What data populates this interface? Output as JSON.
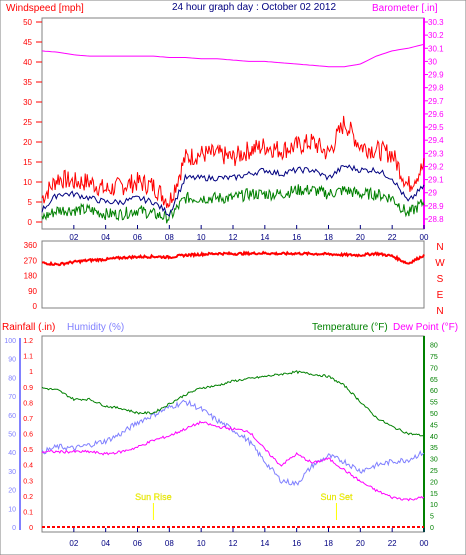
{
  "title": "24 hour graph day : October 02 2012",
  "colors": {
    "wind": "#ff0000",
    "gust": "#ff0000",
    "avg": "#000080",
    "green": "#008000",
    "baro": "#ff00ff",
    "dir": "#ff0000",
    "rain": "#ff0000",
    "humidity": "#8080ff",
    "temp": "#008000",
    "dew": "#ff00ff",
    "sun": "#ffff00",
    "blue_axis": "#8080ff"
  },
  "x_ticks": [
    "02",
    "04",
    "06",
    "08",
    "10",
    "12",
    "14",
    "16",
    "18",
    "20",
    "22",
    "00"
  ],
  "chart_data": [
    {
      "type": "line",
      "title": "24 hour graph day : October 02 2012",
      "left_label": "Windspeed [mph]",
      "right_label": "Barometer [.in]",
      "y_left_ticks": [
        "0",
        "5",
        "10",
        "15",
        "20",
        "25",
        "30",
        "35",
        "40",
        "45",
        "50"
      ],
      "y_right_ticks": [
        "28.8",
        "28.9",
        "29",
        "29.1",
        "29.2",
        "29.3",
        "29.4",
        "29.5",
        "29.6",
        "29.7",
        "29.8",
        "29.9",
        "30",
        "30.1",
        "30.2",
        "30.3"
      ],
      "x_hours": [
        0,
        1,
        2,
        3,
        4,
        5,
        6,
        7,
        8,
        9,
        10,
        11,
        12,
        13,
        14,
        15,
        16,
        17,
        18,
        19,
        20,
        21,
        22,
        23,
        24
      ],
      "series": [
        {
          "key": "gust",
          "values": [
            6,
            11,
            10,
            10,
            8,
            9,
            10,
            9,
            5,
            16,
            17,
            17,
            16,
            18,
            19,
            18,
            19,
            20,
            17,
            25,
            19,
            18,
            17,
            9,
            14
          ]
        },
        {
          "key": "avg",
          "values": [
            3,
            7,
            7,
            6,
            5,
            5,
            6,
            5,
            2,
            11,
            11,
            11,
            11,
            12,
            13,
            12,
            13,
            13,
            11,
            14,
            13,
            13,
            11,
            5,
            9
          ]
        },
        {
          "key": "low",
          "values": [
            1,
            3,
            3,
            3,
            2,
            2,
            3,
            2,
            1,
            6,
            6,
            6,
            6,
            7,
            7,
            7,
            8,
            8,
            7,
            8,
            7,
            7,
            6,
            2,
            5
          ]
        },
        {
          "key": "baro",
          "axis": "right",
          "values": [
            30.08,
            30.07,
            30.05,
            30.04,
            30.04,
            30.04,
            30.04,
            30.04,
            30.03,
            30.03,
            30.02,
            30.02,
            30.01,
            30.0,
            30.0,
            29.99,
            29.98,
            29.97,
            29.96,
            29.96,
            29.98,
            30.04,
            30.08,
            30.1,
            30.13
          ]
        }
      ]
    },
    {
      "type": "line",
      "compass": [
        "N",
        "W",
        "S",
        "E",
        "N"
      ],
      "y_ticks": [
        "0",
        "90",
        "180",
        "270",
        "360"
      ],
      "x_hours": [
        0,
        1,
        2,
        3,
        4,
        5,
        6,
        7,
        8,
        9,
        10,
        11,
        12,
        13,
        14,
        15,
        16,
        17,
        18,
        19,
        20,
        21,
        22,
        23,
        24
      ],
      "series": [
        {
          "key": "direction",
          "values": [
            255,
            245,
            260,
            270,
            275,
            285,
            290,
            292,
            288,
            300,
            305,
            310,
            308,
            310,
            312,
            308,
            310,
            308,
            306,
            302,
            300,
            310,
            295,
            250,
            300
          ]
        }
      ]
    },
    {
      "type": "line",
      "left_labels": [
        "Rainfall (.in)",
        "Humidity (%)"
      ],
      "right_labels": [
        "Temperature (°F)",
        "Dew Point (°F)"
      ],
      "rain_ticks": [
        "0",
        "0.1",
        "0.2",
        "0.3",
        "0.4",
        "0.5",
        "0.6",
        "0.7",
        "0.8",
        "0.9",
        "1",
        "1.1",
        "1.2"
      ],
      "humidity_ticks": [
        "0",
        "10",
        "20",
        "30",
        "40",
        "50",
        "60",
        "70",
        "80",
        "90",
        "100"
      ],
      "temp_ticks": [
        "0",
        "5",
        "10",
        "15",
        "20",
        "25",
        "30",
        "35",
        "40",
        "45",
        "50",
        "55",
        "60",
        "65",
        "70",
        "75",
        "80"
      ],
      "sunrise_label": "Sun Rise",
      "sunset_label": "Sun Set",
      "sunrise_hour": 7.0,
      "sunset_hour": 18.5,
      "x_hours": [
        0,
        1,
        2,
        3,
        4,
        5,
        6,
        7,
        8,
        9,
        10,
        11,
        12,
        13,
        14,
        15,
        16,
        17,
        18,
        19,
        20,
        21,
        22,
        23,
        24
      ],
      "series": [
        {
          "key": "rain",
          "values": [
            0,
            0,
            0,
            0,
            0,
            0,
            0,
            0,
            0,
            0,
            0,
            0,
            0,
            0,
            0,
            0,
            0,
            0,
            0,
            0,
            0,
            0,
            0,
            0,
            0
          ]
        },
        {
          "key": "humidity",
          "values": [
            40,
            43,
            42,
            44,
            46,
            50,
            56,
            60,
            64,
            67,
            63,
            57,
            52,
            46,
            35,
            25,
            23,
            33,
            38,
            35,
            30,
            33,
            35,
            36,
            40
          ]
        },
        {
          "key": "temp",
          "values": [
            61,
            60,
            56,
            56,
            53,
            52,
            50,
            50,
            54,
            58,
            61,
            62,
            64,
            65,
            66,
            67,
            68,
            67,
            66,
            62,
            55,
            48,
            44,
            41,
            40
          ]
        },
        {
          "key": "dew",
          "values": [
            33,
            33,
            33,
            33,
            32,
            33,
            35,
            38,
            40,
            43,
            46,
            44,
            43,
            42,
            34,
            27,
            32,
            28,
            30,
            25,
            20,
            16,
            13,
            12,
            13
          ]
        }
      ]
    }
  ]
}
